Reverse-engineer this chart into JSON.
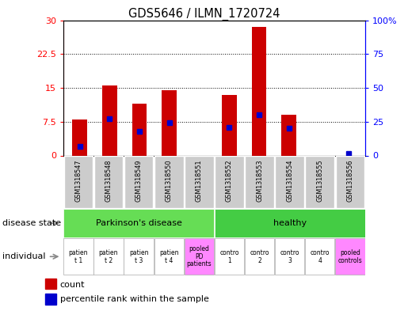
{
  "title": "GDS5646 / ILMN_1720724",
  "samples": [
    "GSM1318547",
    "GSM1318548",
    "GSM1318549",
    "GSM1318550",
    "GSM1318551",
    "GSM1318552",
    "GSM1318553",
    "GSM1318554",
    "GSM1318555",
    "GSM1318556"
  ],
  "count_values": [
    8.0,
    15.5,
    11.5,
    14.5,
    0.0,
    13.5,
    28.5,
    9.0,
    0.0,
    0.0
  ],
  "percentile_values": [
    7.0,
    27.0,
    18.0,
    24.0,
    0.0,
    21.0,
    30.0,
    20.0,
    0.0,
    1.5
  ],
  "left_ylim": [
    0,
    30
  ],
  "right_ylim": [
    0,
    100
  ],
  "left_yticks": [
    0,
    7.5,
    15,
    22.5,
    30
  ],
  "left_yticklabels": [
    "0",
    "7.5",
    "15",
    "22.5",
    "30"
  ],
  "right_yticks": [
    0,
    25,
    50,
    75,
    100
  ],
  "right_yticklabels": [
    "0",
    "25",
    "50",
    "75",
    "100%"
  ],
  "bar_color": "#cc0000",
  "percentile_color": "#0000cc",
  "bg_color": "#ffffff",
  "disease_state_groups": [
    {
      "label": "Parkinson's disease",
      "start": 0,
      "end": 4,
      "color": "#66dd55"
    },
    {
      "label": "healthy",
      "start": 5,
      "end": 9,
      "color": "#44cc44"
    }
  ],
  "individual_labels": [
    "patien\nt 1",
    "patien\nt 2",
    "patien\nt 3",
    "patien\nt 4",
    "pooled\nPD\npatients",
    "contro\n1",
    "contro\n2",
    "contro\n3",
    "contro\n4",
    "pooled\ncontrols"
  ],
  "individual_colors": [
    "#ffffff",
    "#ffffff",
    "#ffffff",
    "#ffffff",
    "#ff88ff",
    "#ffffff",
    "#ffffff",
    "#ffffff",
    "#ffffff",
    "#ff88ff"
  ],
  "label_disease_state": "disease state",
  "label_individual": "individual",
  "legend_count_label": "count",
  "legend_percentile_label": "percentile rank within the sample",
  "gsm_bg": "#cccccc",
  "gsm_cell_bg": "#cccccc"
}
